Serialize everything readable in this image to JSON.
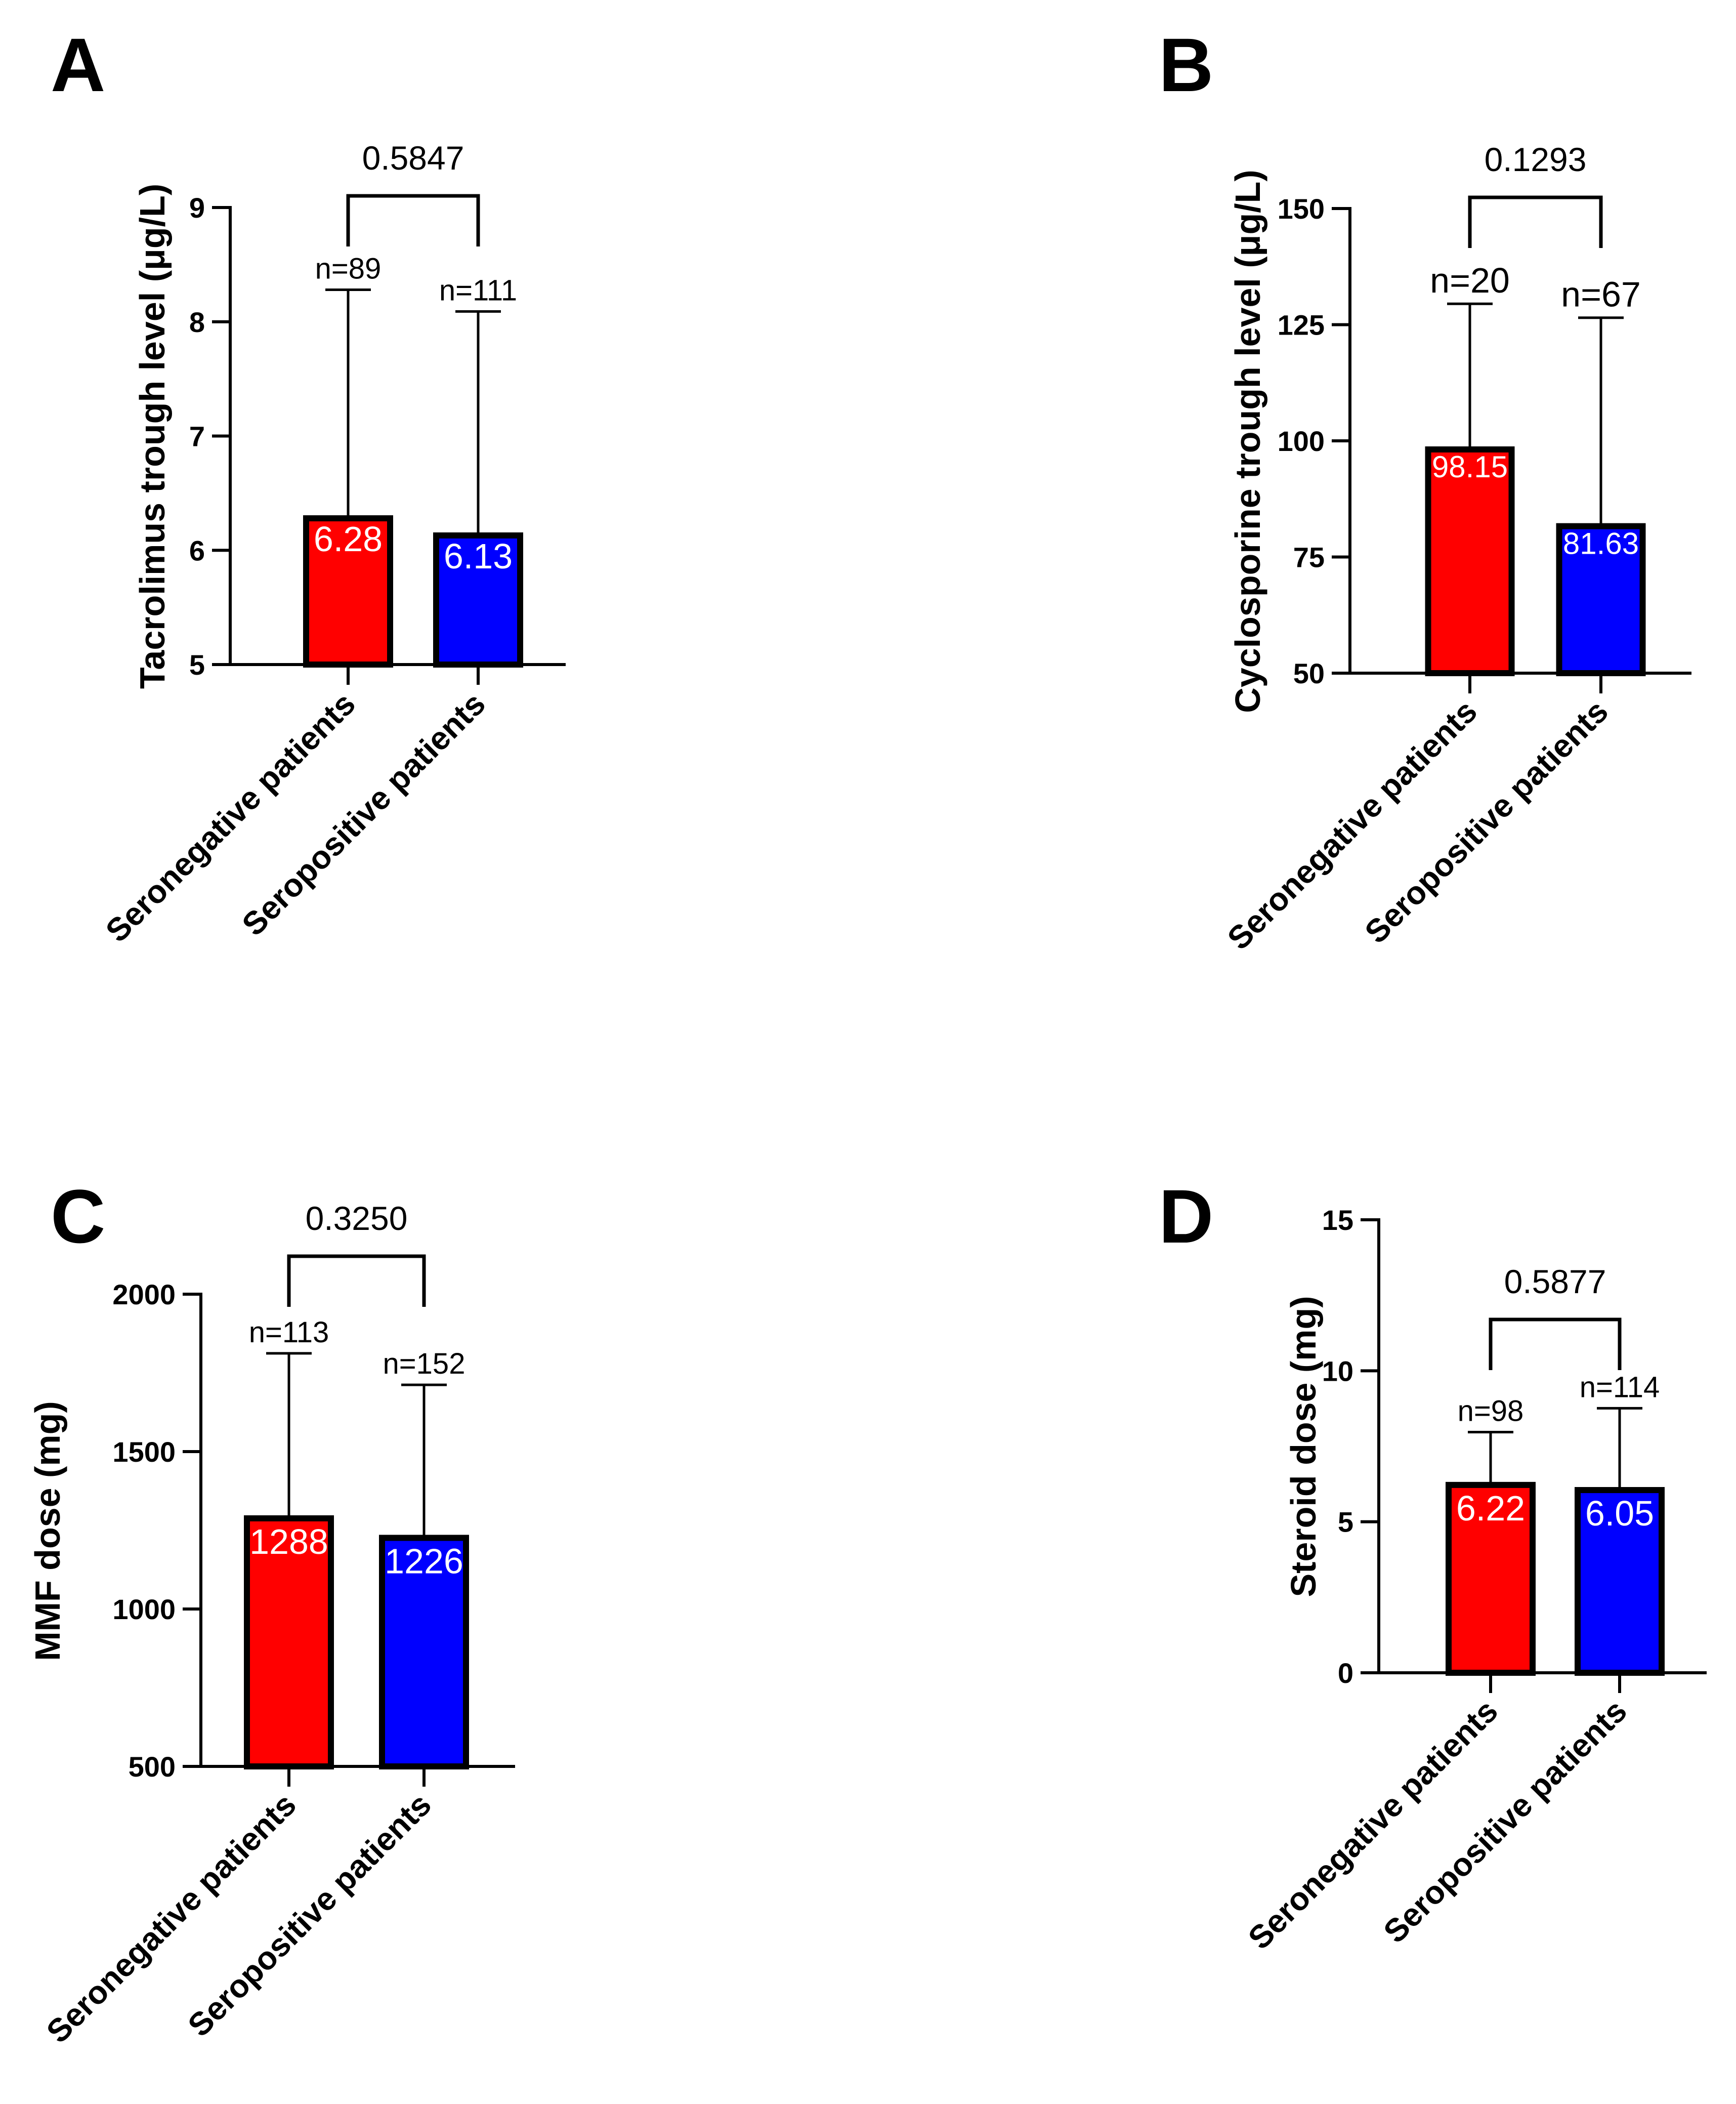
{
  "colors": {
    "red": "#ff0000",
    "blue": "#0000ff",
    "axis": "#000000"
  },
  "chart_data": [
    {
      "type": "bar",
      "panel": "A",
      "ylabel": "Tacrolimus trough level (μg/L)",
      "categories": [
        "Seronegative patients",
        "Seropositive patients"
      ],
      "values": [
        6.28,
        6.13
      ],
      "value_labels": [
        "6.28",
        "6.13"
      ],
      "error_upper": [
        8.28,
        8.09
      ],
      "n_labels": [
        "n=89",
        "n=111"
      ],
      "p_value": "0.5847",
      "ylim": [
        5,
        9
      ],
      "yticks": [
        5,
        6,
        7,
        8,
        9
      ],
      "ytick_labels": [
        "5",
        "6",
        "7",
        "8",
        "9"
      ],
      "colors": [
        "#ff0000",
        "#0000ff"
      ]
    },
    {
      "type": "bar",
      "panel": "B",
      "ylabel": "Cyclosporine trough level (μg/L)",
      "categories": [
        "Seronegative patients",
        "Seropositive patients"
      ],
      "values": [
        98.15,
        81.63
      ],
      "value_labels": [
        "98.15",
        "81.63"
      ],
      "error_upper": [
        129.5,
        126.5
      ],
      "n_labels": [
        "n=20",
        "n=67"
      ],
      "p_value": "0.1293",
      "ylim": [
        50,
        150
      ],
      "yticks": [
        50,
        75,
        100,
        125,
        150
      ],
      "ytick_labels": [
        "50",
        "75",
        "100",
        "125",
        "150"
      ],
      "colors": [
        "#ff0000",
        "#0000ff"
      ]
    },
    {
      "type": "bar",
      "panel": "C",
      "ylabel": "MMF dose (mg)",
      "categories": [
        "Seronegative patients",
        "Seropositive patients"
      ],
      "values": [
        1288,
        1226
      ],
      "value_labels": [
        "1288",
        "1226"
      ],
      "error_upper": [
        1812,
        1712
      ],
      "n_labels": [
        "n=113",
        "n=152"
      ],
      "p_value": "0.3250",
      "ylim": [
        500,
        2000
      ],
      "yticks": [
        500,
        1000,
        1500,
        2000
      ],
      "ytick_labels": [
        "500",
        "1000",
        "1500",
        "2000"
      ],
      "colors": [
        "#ff0000",
        "#0000ff"
      ]
    },
    {
      "type": "bar",
      "panel": "D",
      "ylabel": "Steroid dose (mg)",
      "categories": [
        "Seronegative patients",
        "Seropositive patients"
      ],
      "values": [
        6.22,
        6.05
      ],
      "value_labels": [
        "6.22",
        "6.05"
      ],
      "error_upper": [
        7.97,
        8.76
      ],
      "n_labels": [
        "n=98",
        "n=114"
      ],
      "p_value": "0.5877",
      "ylim": [
        0,
        15
      ],
      "yticks": [
        0,
        5,
        10,
        15
      ],
      "ytick_labels": [
        "0",
        "5",
        "10",
        "15"
      ],
      "colors": [
        "#ff0000",
        "#0000ff"
      ]
    }
  ]
}
